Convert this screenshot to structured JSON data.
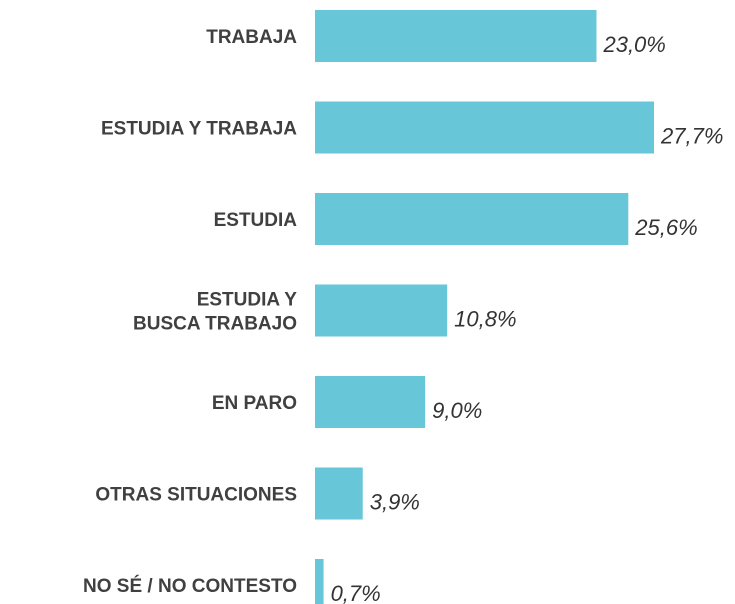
{
  "chart_data": {
    "type": "hbar",
    "categories": [
      "TRABAJA",
      "ESTUDIA Y TRABAJA",
      "ESTUDIA",
      "ESTUDIA Y\nBUSCA TRABAJO",
      "EN PARO",
      "OTRAS SITUACIONES",
      "NO SÉ / NO CONTESTO"
    ],
    "values": [
      23.0,
      27.7,
      25.6,
      10.8,
      9.0,
      3.9,
      0.7
    ],
    "value_labels": [
      "23,0%",
      "27,7%",
      "25,6%",
      "10,8%",
      "9,0%",
      "3,9%",
      "0,7%"
    ],
    "color": "#68c6d9"
  }
}
